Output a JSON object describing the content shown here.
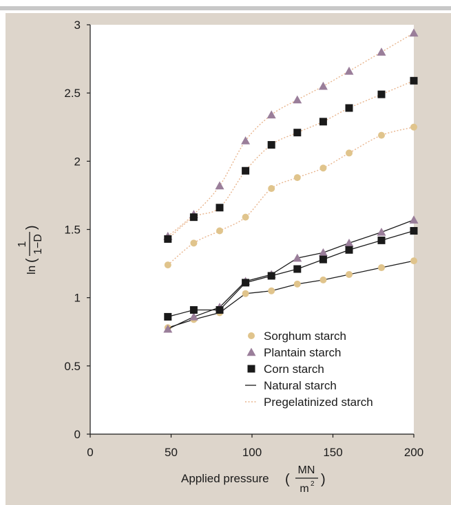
{
  "colors": {
    "panel_bg": "#ddd5cb",
    "top_rule": "#c8c8c8",
    "plot_bg": "#ffffff",
    "sorghum": "#e0c48c",
    "plantain": "#9a7e9a",
    "corn": "#1a1a1a",
    "natural_line": "#1a1a1a",
    "pregel_line": "#e8b48c"
  },
  "chart_data": {
    "type": "scatter",
    "xlabel": "Applied pressure",
    "xlabel_unit_num": "MN",
    "xlabel_unit_den": "m",
    "xlabel_unit_exp": "2",
    "ylabel_prefix": "ln",
    "ylabel_num": "1",
    "ylabel_den": "1−D",
    "xlim": [
      0,
      200
    ],
    "ylim": [
      0,
      3
    ],
    "xticks": [
      "0",
      "50",
      "100",
      "150",
      "200"
    ],
    "yticks": [
      "0",
      "0.5",
      "1",
      "1.5",
      "2",
      "2.5",
      "3"
    ],
    "grid": false,
    "legend_position": "bottom-right",
    "legend": [
      {
        "label": "Sorghum starch",
        "marker": "circle"
      },
      {
        "label": "Plantain starch",
        "marker": "triangle"
      },
      {
        "label": "Corn starch",
        "marker": "square"
      },
      {
        "label": "Natural starch",
        "marker": "solid-line"
      },
      {
        "label": "Pregelatinized starch",
        "marker": "dotted-line"
      }
    ],
    "x": [
      48,
      64,
      80,
      96,
      112,
      128,
      144,
      160,
      180,
      200
    ],
    "series": [
      {
        "name": "Sorghum starch",
        "group": "Pregelatinized starch",
        "marker": "circle",
        "line": "dotted",
        "values": [
          1.24,
          1.4,
          1.49,
          1.59,
          1.8,
          1.88,
          1.95,
          2.06,
          2.19,
          2.25
        ]
      },
      {
        "name": "Plantain starch",
        "group": "Pregelatinized starch",
        "marker": "triangle",
        "line": "dotted",
        "values": [
          1.45,
          1.61,
          1.82,
          2.15,
          2.34,
          2.45,
          2.55,
          2.66,
          2.8,
          2.94
        ]
      },
      {
        "name": "Corn starch",
        "group": "Pregelatinized starch",
        "marker": "square",
        "line": "dotted",
        "values": [
          1.43,
          1.59,
          1.66,
          1.93,
          2.12,
          2.21,
          2.29,
          2.39,
          2.49,
          2.59
        ]
      },
      {
        "name": "Sorghum starch",
        "group": "Natural starch",
        "marker": "circle",
        "line": "solid",
        "values": [
          0.78,
          0.84,
          0.89,
          1.03,
          1.05,
          1.1,
          1.13,
          1.17,
          1.22,
          1.27
        ]
      },
      {
        "name": "Plantain starch",
        "group": "Natural starch",
        "marker": "triangle",
        "line": "solid",
        "values": [
          0.77,
          0.86,
          0.93,
          1.12,
          1.17,
          1.29,
          1.33,
          1.4,
          1.48,
          1.57
        ]
      },
      {
        "name": "Corn starch",
        "group": "Natural starch",
        "marker": "square",
        "line": "solid",
        "values": [
          0.86,
          0.91,
          0.91,
          1.11,
          1.16,
          1.21,
          1.28,
          1.35,
          1.42,
          1.49
        ]
      }
    ]
  }
}
